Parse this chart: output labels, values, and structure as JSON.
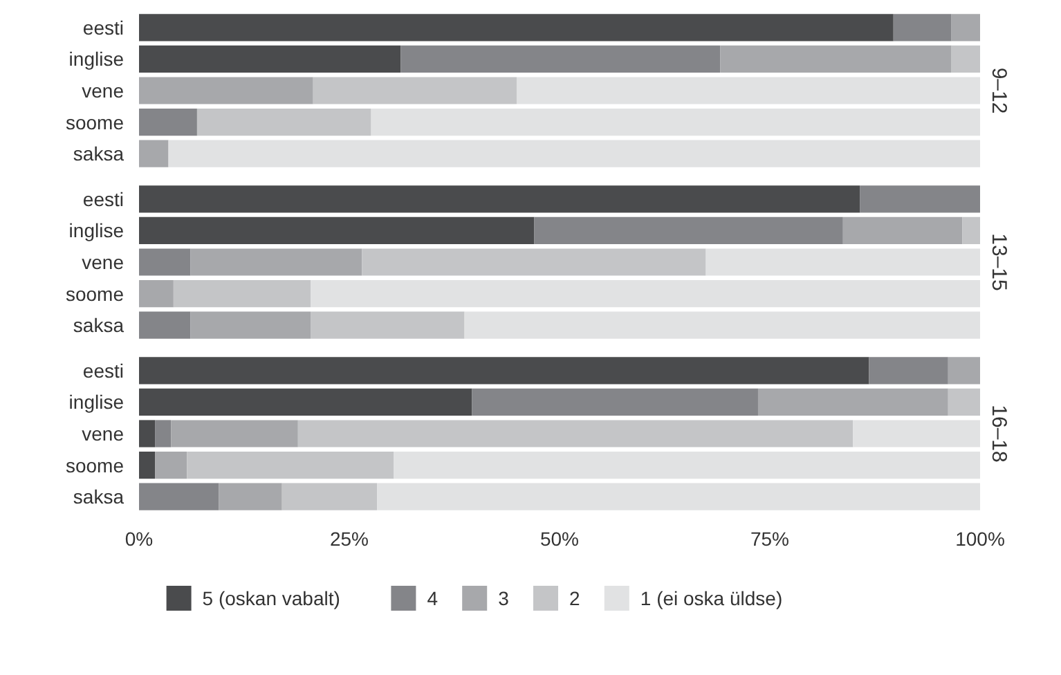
{
  "chart_data": [
    {
      "type": "bar",
      "orientation": "horizontal",
      "stacked": true,
      "y2label": "9–12",
      "categories": [
        "eesti",
        "inglise",
        "vene",
        "soome",
        "saksa"
      ],
      "xlim": [
        0,
        100
      ],
      "tick_labels": "y",
      "series": [
        {
          "color": "#4a4b4d",
          "values": [
            89.7,
            31.1,
            0,
            0,
            0
          ]
        },
        {
          "color": "#848589",
          "values": [
            6.9,
            38.0,
            0,
            6.9,
            0
          ]
        },
        {
          "color": "#a7a8ab",
          "values": [
            3.4,
            27.5,
            20.7,
            0,
            3.5
          ]
        },
        {
          "color": "#c4c5c7",
          "values": [
            0,
            3.4,
            24.2,
            20.7,
            0
          ]
        },
        {
          "color": "#e1e2e3",
          "values": [
            0,
            0,
            55.1,
            72.4,
            96.5
          ]
        }
      ]
    },
    {
      "type": "bar",
      "orientation": "horizontal",
      "stacked": true,
      "y2label": "13–15",
      "categories": [
        "eesti",
        "inglise",
        "vene",
        "soome",
        "saksa"
      ],
      "xlim": [
        0,
        100
      ],
      "tick_labels": "y",
      "series": [
        {
          "color": "#4a4b4d",
          "values": [
            85.7,
            47.0,
            0,
            0,
            0
          ]
        },
        {
          "color": "#848589",
          "values": [
            14.3,
            36.7,
            6.1,
            0,
            6.1
          ]
        },
        {
          "color": "#a7a8ab",
          "values": [
            0,
            14.2,
            20.4,
            4.1,
            14.3
          ]
        },
        {
          "color": "#c4c5c7",
          "values": [
            0,
            2.1,
            40.9,
            16.3,
            18.3
          ]
        },
        {
          "color": "#e1e2e3",
          "values": [
            0,
            0,
            32.6,
            79.6,
            61.3
          ]
        }
      ]
    },
    {
      "type": "bar",
      "orientation": "horizontal",
      "stacked": true,
      "y2label": "16–18",
      "categories": [
        "eesti",
        "inglise",
        "vene",
        "soome",
        "saksa"
      ],
      "xlim": [
        0,
        100
      ],
      "xticks": [
        {
          "value": 0,
          "label": "0%"
        },
        {
          "value": 25,
          "label": "25%"
        },
        {
          "value": 50,
          "label": "50%"
        },
        {
          "value": 75,
          "label": "75%"
        },
        {
          "value": 100,
          "label": "100%"
        }
      ],
      "legend": "bottom",
      "series": [
        {
          "name": "5 (oskan vabalt)",
          "color": "#4a4b4d",
          "values": [
            86.8,
            39.6,
            1.9,
            1.9,
            0
          ]
        },
        {
          "name": "4",
          "color": "#848589",
          "values": [
            9.4,
            34.0,
            1.9,
            0,
            9.5
          ]
        },
        {
          "name": "3",
          "color": "#a7a8ab",
          "values": [
            3.8,
            22.6,
            15.1,
            3.8,
            7.5
          ]
        },
        {
          "name": "2",
          "color": "#c4c5c7",
          "values": [
            0,
            3.8,
            66.0,
            24.6,
            11.3
          ]
        },
        {
          "name": "1 (ei oska üldse)",
          "color": "#e1e2e3",
          "values": [
            0,
            0,
            15.1,
            69.7,
            71.7
          ]
        }
      ]
    }
  ]
}
